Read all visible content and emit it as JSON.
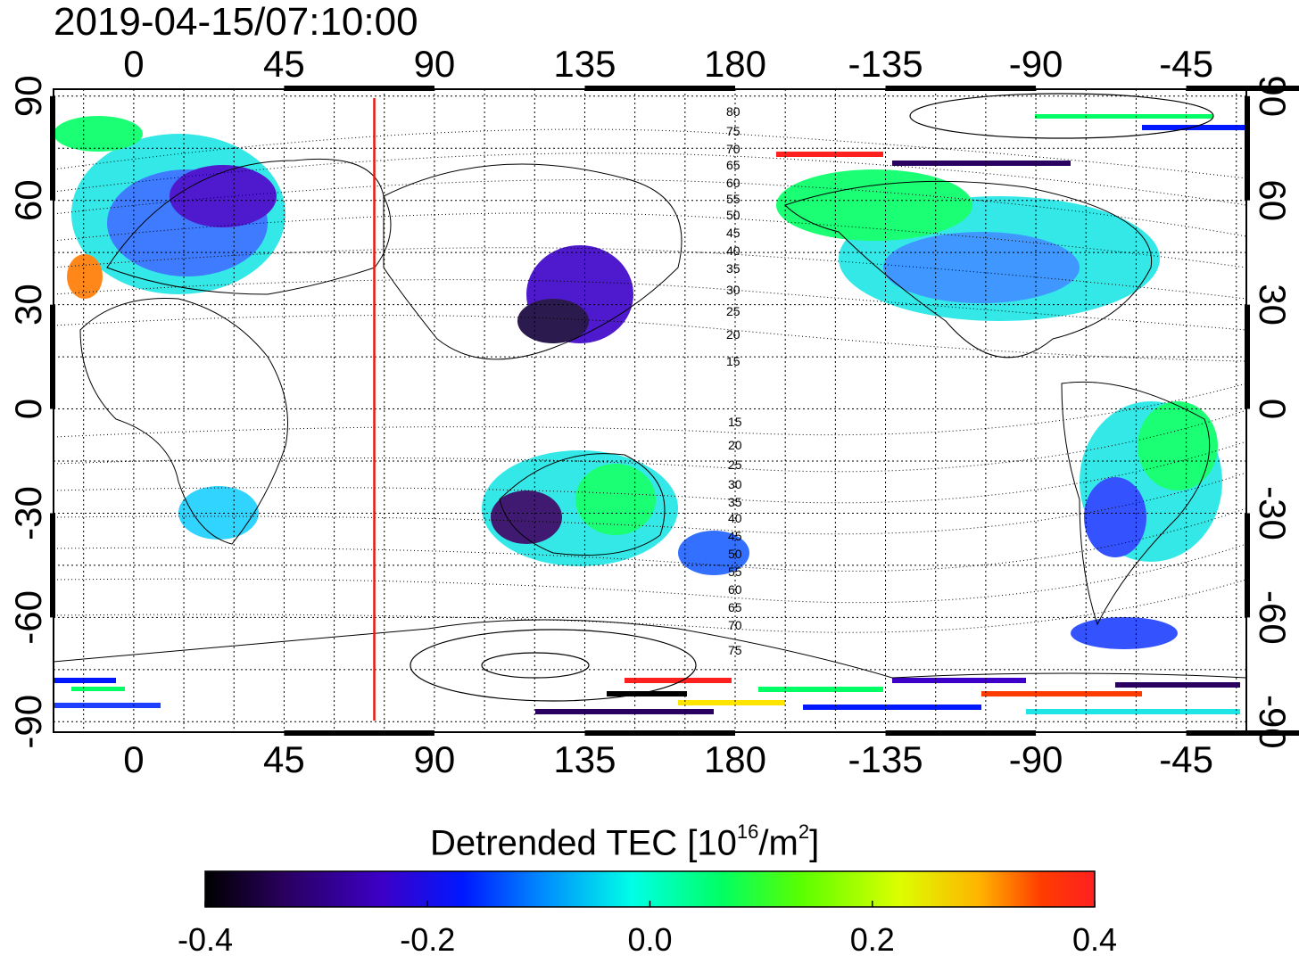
{
  "title": "2019-04-15/07:10:00",
  "map": {
    "top_lon_labels": [
      "0",
      "45",
      "90",
      "135",
      "180",
      "-135",
      "-90",
      "-45"
    ],
    "bottom_lon_labels": [
      "0",
      "45",
      "90",
      "135",
      "180",
      "-135",
      "-90",
      "-45"
    ],
    "left_lat_labels": [
      "90",
      "60",
      "30",
      "0",
      "-30",
      "-60",
      "-90"
    ],
    "right_lat_labels": [
      "90",
      "60",
      "30",
      "0",
      "-30",
      "-60",
      "-90"
    ],
    "lon_ticks": [
      0,
      45,
      90,
      135,
      180,
      225,
      270,
      315
    ],
    "lat_ticks": [
      90,
      60,
      30,
      0,
      -30,
      -60,
      -90
    ],
    "lon_range": [
      -24,
      333
    ],
    "lat_range": [
      -93,
      92
    ],
    "marker_longitude": 72,
    "marker_color": "#e8190f",
    "magnetic_latitude_labels_north": [
      "80",
      "75",
      "70",
      "65",
      "60",
      "55",
      "50",
      "45",
      "40",
      "35",
      "30",
      "25",
      "20",
      "15"
    ],
    "magnetic_latitude_labels_south": [
      "15",
      "20",
      "25",
      "30",
      "35",
      "40",
      "45",
      "50",
      "55",
      "60",
      "65",
      "70",
      "75"
    ]
  },
  "colorbar": {
    "title_prefix": "Detrended TEC  [10",
    "title_exp": "16",
    "title_mid": "/m",
    "title_exp2": "2",
    "title_suffix": "]",
    "tick_labels": [
      "-0.4",
      "-0.2",
      "0.0",
      "0.2",
      "0.4"
    ],
    "min": -0.4,
    "max": 0.4,
    "colors": [
      "#000000",
      "#2a0060",
      "#3c00c8",
      "#0018ff",
      "#008cff",
      "#00ffe6",
      "#00ff64",
      "#5aff00",
      "#dcff00",
      "#ffb400",
      "#ff3c00",
      "#ff2020"
    ]
  }
}
